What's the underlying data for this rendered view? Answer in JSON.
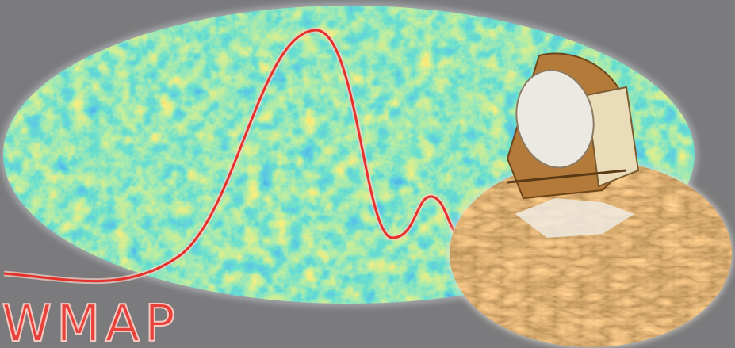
{
  "logo": {
    "text": "WMAP"
  }
}
